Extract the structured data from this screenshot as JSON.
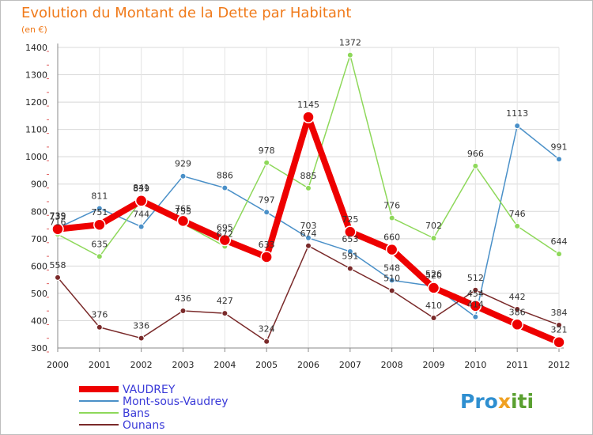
{
  "chart_data": {
    "type": "line",
    "title": "Evolution du Montant de la Dette par Habitant",
    "subtitle": "(en €)",
    "x": [
      "2000",
      "2001",
      "2002",
      "2003",
      "2004",
      "2005",
      "2006",
      "2007",
      "2008",
      "2009",
      "2010",
      "2011",
      "2012"
    ],
    "ylim": [
      300,
      1400
    ],
    "yticks": [
      300,
      400,
      500,
      600,
      700,
      800,
      900,
      1000,
      1100,
      1200,
      1300,
      1400
    ],
    "grid": true,
    "legend_position": "bottom-left",
    "series": [
      {
        "name": "Mont-sous-Vaudrey",
        "color": "#4a90c8",
        "values": [
          739,
          811,
          744,
          929,
          886,
          797,
          703,
          653,
          548,
          526,
          414,
          1113,
          991
        ]
      },
      {
        "name": "Bans",
        "color": "#8ed85a",
        "values": [
          716,
          635,
          841,
          755,
          672,
          978,
          885,
          1372,
          776,
          702,
          966,
          746,
          644
        ]
      },
      {
        "name": "Ounans",
        "color": "#7a2a2a",
        "values": [
          558,
          376,
          336,
          436,
          427,
          324,
          674,
          591,
          510,
          410,
          512,
          442,
          384
        ]
      },
      {
        "name": "VAUDREY",
        "color": "#ee0000",
        "values": [
          735,
          751,
          839,
          765,
          695,
          633,
          1145,
          725,
          660,
          520,
          454,
          386,
          321
        ]
      }
    ]
  },
  "brand": {
    "prefix": "Pro",
    "x": "x",
    "suffix": "iti"
  }
}
